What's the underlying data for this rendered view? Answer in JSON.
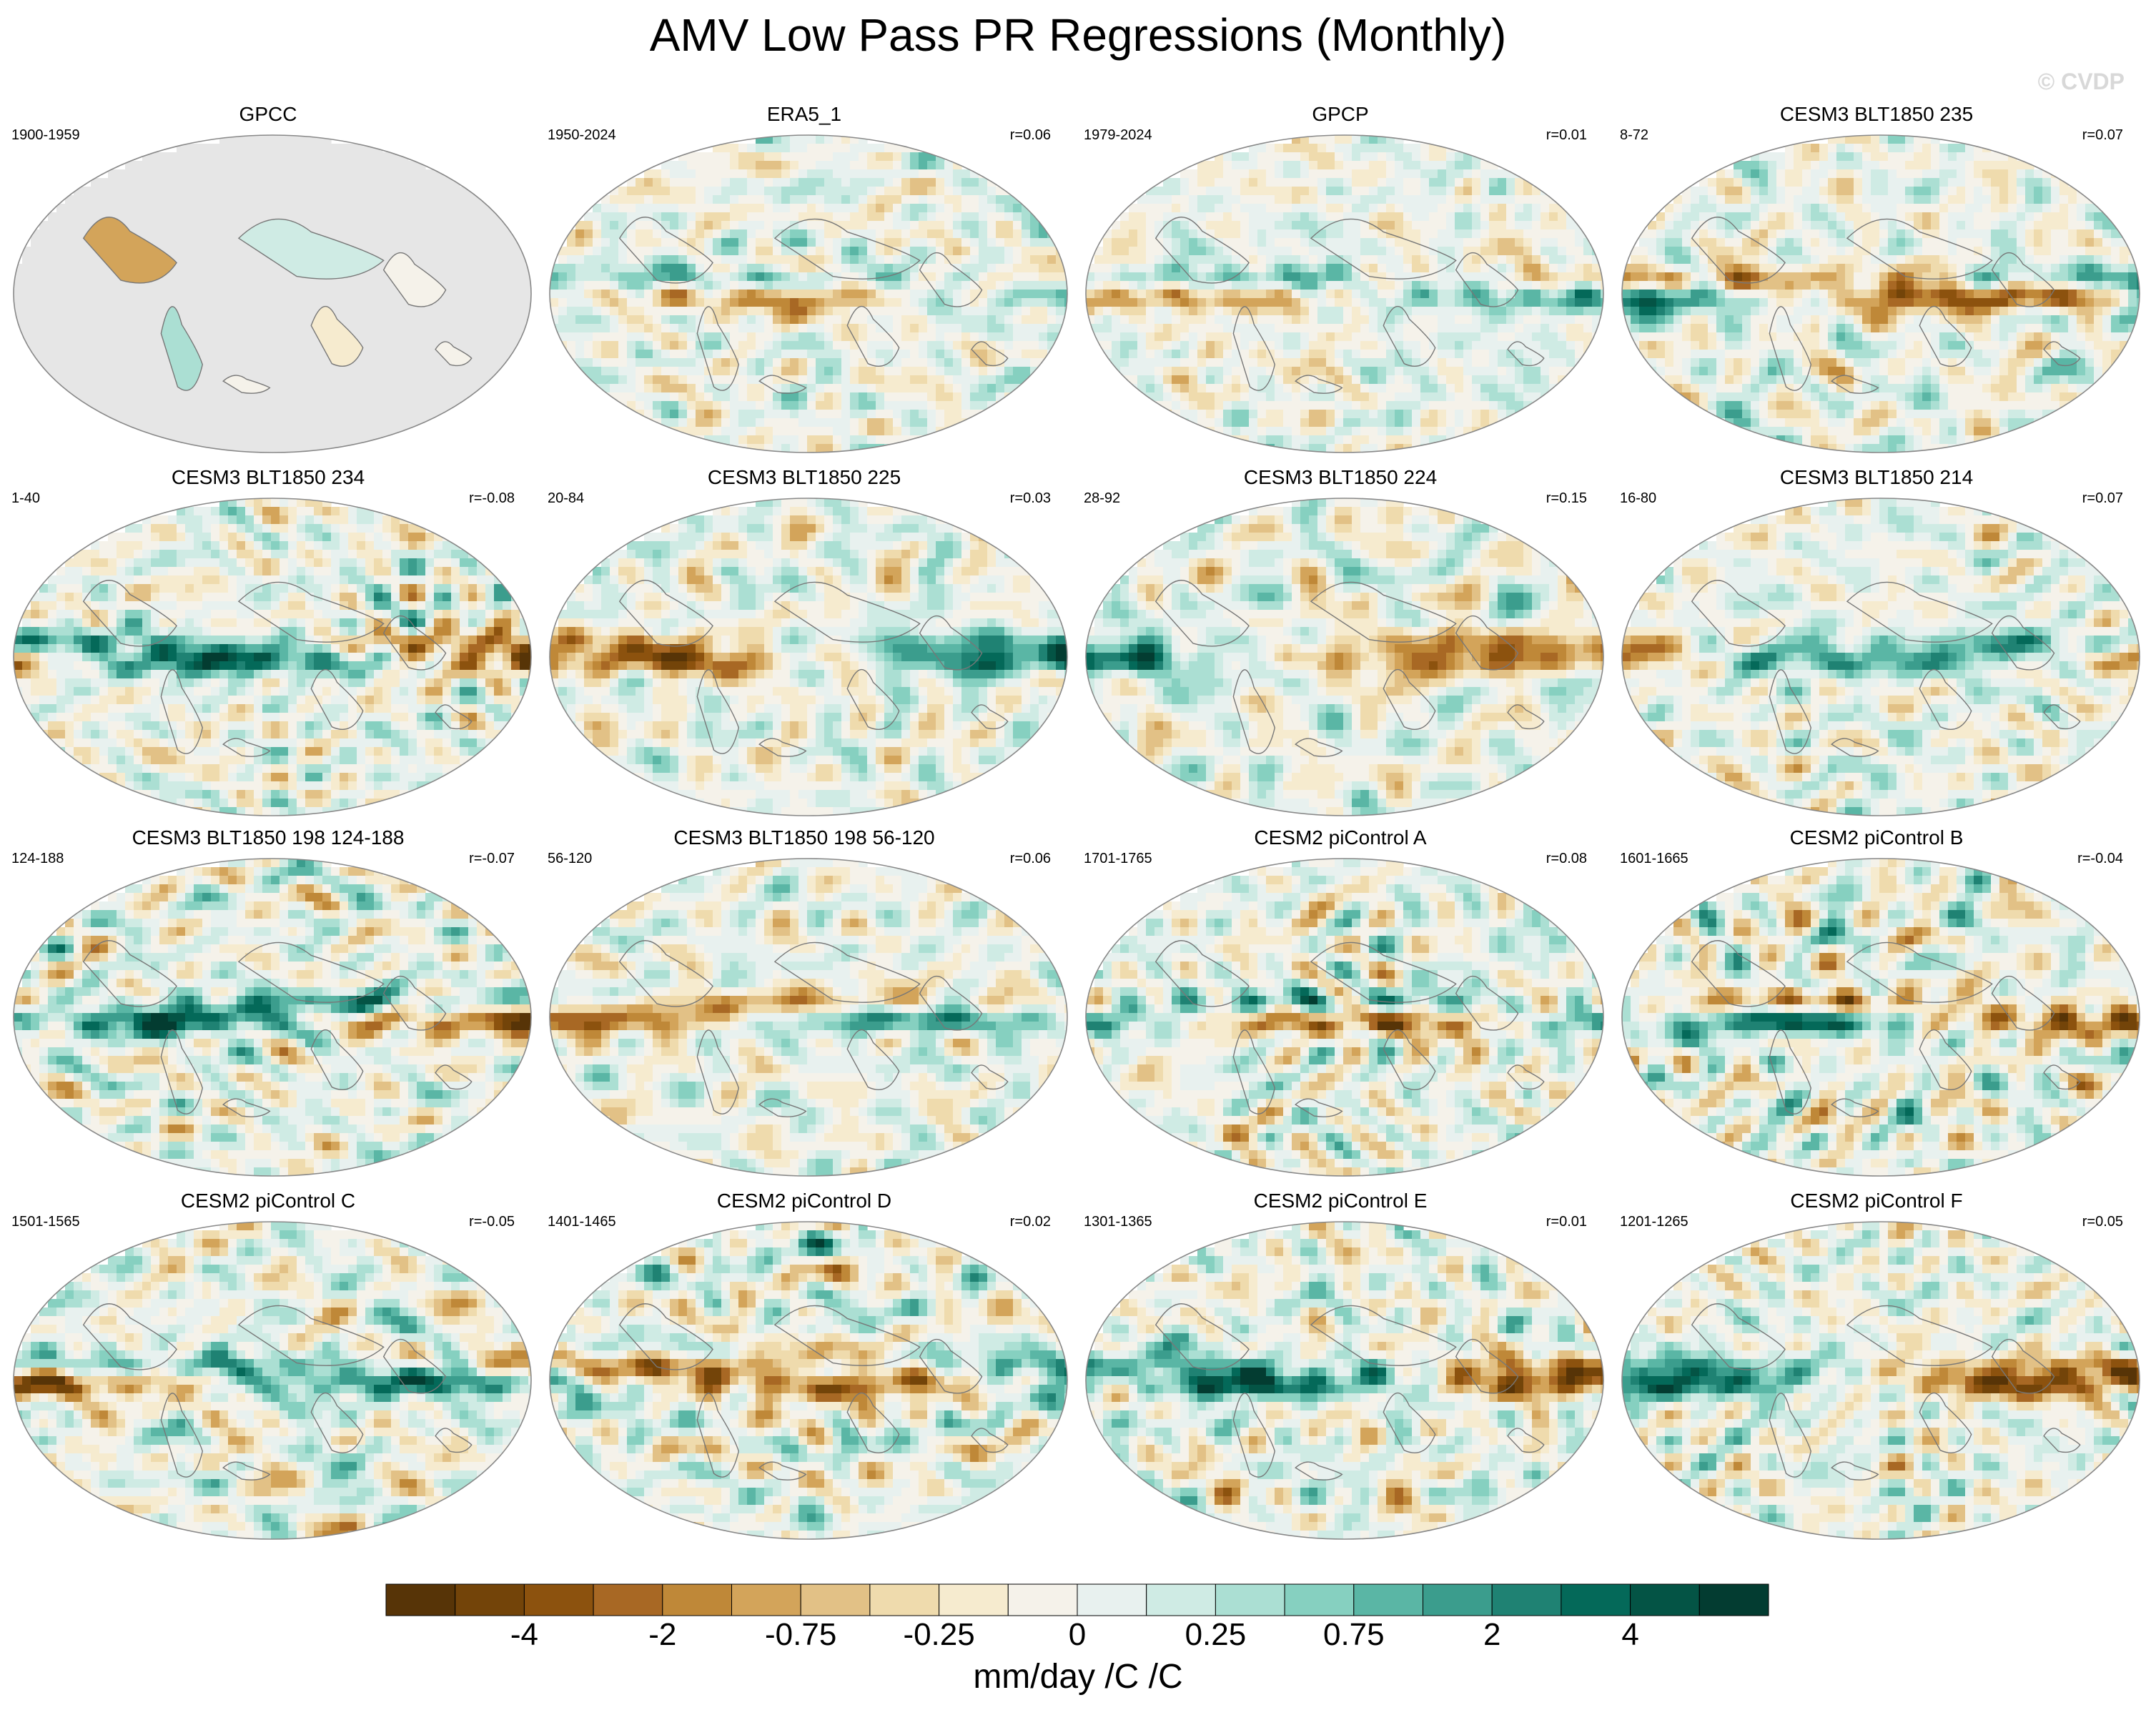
{
  "title": "AMV Low Pass PR Regressions (Monthly)",
  "copyright": "© CVDP",
  "colorbar": {
    "colors": [
      "#573407",
      "#734409",
      "#8c520e",
      "#a86824",
      "#bf8838",
      "#d3a45a",
      "#e2c186",
      "#efdbad",
      "#f6ebcf",
      "#f5f2ea",
      "#e8f1ef",
      "#cfebe4",
      "#abdfd3",
      "#86d0c0",
      "#5ab6a5",
      "#3b9d8d",
      "#1f8273",
      "#046959",
      "#045445",
      "#033c31"
    ],
    "labels": [
      "-4",
      "-2",
      "-0.75",
      "-0.25",
      "0",
      "0.25",
      "0.75",
      "2",
      "4"
    ],
    "units": "mm/day /C /C"
  },
  "chart_data": {
    "type": "map-panels",
    "title": "AMV Low Pass PR Regressions (Monthly)",
    "colorbar_label": "mm/day /C /C",
    "colorbar_ticks": [
      "-4",
      "-2",
      "-0.75",
      "-0.25",
      "0",
      "0.25",
      "0.75",
      "2",
      "4"
    ],
    "panels": [
      {
        "name": "GPCC",
        "years": "1900-1959",
        "r": "",
        "land_only": true,
        "pattern_seed": 1,
        "strength": 0.35
      },
      {
        "name": "ERA5_1",
        "years": "1950-2024",
        "r": "r=0.06",
        "land_only": false,
        "pattern_seed": 2,
        "strength": 0.75
      },
      {
        "name": "GPCP",
        "years": "1979-2024",
        "r": "r=0.01",
        "land_only": false,
        "pattern_seed": 3,
        "strength": 0.65
      },
      {
        "name": "CESM3 BLT1850 235",
        "years": "8-72",
        "r": "r=0.07",
        "land_only": false,
        "pattern_seed": 4,
        "strength": 1.0
      },
      {
        "name": "CESM3 BLT1850 234",
        "years": "1-40",
        "r": "r=-0.08",
        "land_only": false,
        "pattern_seed": 5,
        "strength": 0.95
      },
      {
        "name": "CESM3 BLT1850 225",
        "years": "20-84",
        "r": "r=0.03",
        "land_only": false,
        "pattern_seed": 6,
        "strength": 0.85
      },
      {
        "name": "CESM3 BLT1850 224",
        "years": "28-92",
        "r": "r=0.15",
        "land_only": false,
        "pattern_seed": 7,
        "strength": 0.8
      },
      {
        "name": "CESM3 BLT1850 214",
        "years": "16-80",
        "r": "r=0.07",
        "land_only": false,
        "pattern_seed": 8,
        "strength": 0.7
      },
      {
        "name": "CESM3 BLT1850 198 124-188",
        "years": "124-188",
        "r": "r=-0.07",
        "land_only": false,
        "pattern_seed": 9,
        "strength": 0.95
      },
      {
        "name": "CESM3 BLT1850 198 56-120",
        "years": "56-120",
        "r": "r=0.06",
        "land_only": false,
        "pattern_seed": 10,
        "strength": 0.8
      },
      {
        "name": "CESM2 piControl A",
        "years": "1701-1765",
        "r": "r=0.08",
        "land_only": false,
        "pattern_seed": 11,
        "strength": 0.9
      },
      {
        "name": "CESM2 piControl B",
        "years": "1601-1665",
        "r": "r=-0.04",
        "land_only": false,
        "pattern_seed": 12,
        "strength": 0.95
      },
      {
        "name": "CESM2 piControl C",
        "years": "1501-1565",
        "r": "r=-0.05",
        "land_only": false,
        "pattern_seed": 13,
        "strength": 0.9
      },
      {
        "name": "CESM2 piControl D",
        "years": "1401-1465",
        "r": "r=0.02",
        "land_only": false,
        "pattern_seed": 14,
        "strength": 0.9
      },
      {
        "name": "CESM2 piControl E",
        "years": "1301-1365",
        "r": "r=0.01",
        "land_only": false,
        "pattern_seed": 15,
        "strength": 0.95
      },
      {
        "name": "CESM2 piControl F",
        "years": "1201-1265",
        "r": "r=0.05",
        "land_only": false,
        "pattern_seed": 16,
        "strength": 0.9
      }
    ]
  }
}
